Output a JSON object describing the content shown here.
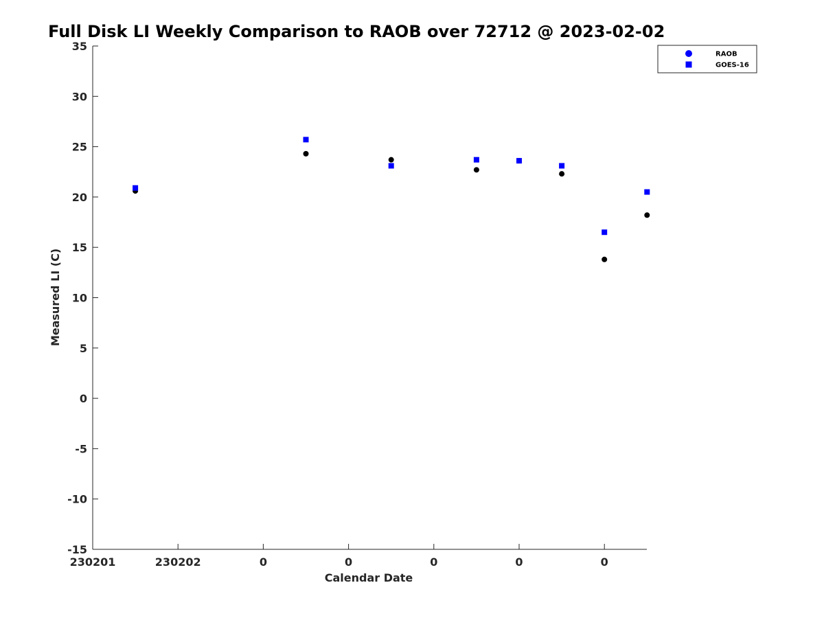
{
  "chart_data": {
    "type": "scatter",
    "title": "Full Disk LI Weekly Comparison to RAOB over 72712 @ 2023-02-02",
    "xlabel": "Calendar Date",
    "ylabel": "Measured LI (C)",
    "ylim": [
      -15,
      35
    ],
    "yticks": [
      -15,
      -10,
      -5,
      0,
      5,
      10,
      15,
      20,
      25,
      30,
      35
    ],
    "xlim": [
      0,
      6.5
    ],
    "xticks": [
      0,
      1,
      2,
      3,
      4,
      5,
      6
    ],
    "xtick_labels": [
      "230201",
      "230202",
      "0",
      "0",
      "0",
      "0",
      "0"
    ],
    "grid": false,
    "legend_position": "top-right",
    "series": [
      {
        "name": "RAOB",
        "marker": "circle",
        "color": "#000000",
        "legend_color": "#0000ff",
        "x": [
          0.5,
          2.5,
          3.5,
          4.5,
          5.0,
          5.5,
          6.0,
          6.5
        ],
        "y": [
          20.6,
          24.3,
          23.7,
          22.7,
          23.6,
          22.3,
          13.8,
          18.2
        ]
      },
      {
        "name": "GOES-16",
        "marker": "square",
        "color": "#0000ff",
        "legend_color": "#0000ff",
        "x": [
          0.5,
          2.5,
          3.5,
          4.5,
          5.0,
          5.5,
          6.0,
          6.5
        ],
        "y": [
          20.9,
          25.7,
          23.1,
          23.7,
          23.6,
          23.1,
          16.5,
          20.5
        ]
      }
    ]
  }
}
